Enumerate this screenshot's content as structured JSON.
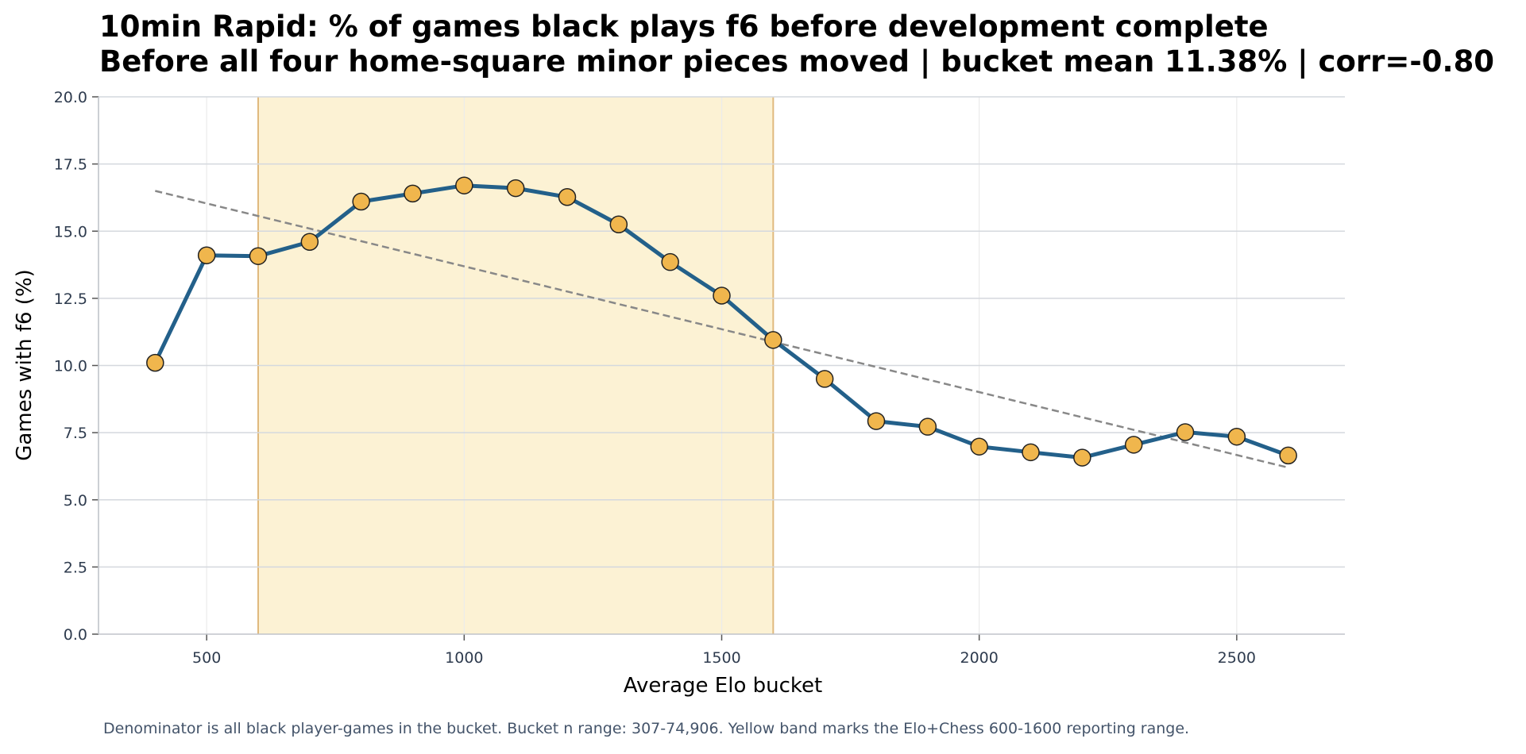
{
  "chart_data": {
    "type": "line",
    "title_lines": [
      "10min Rapid: % of games black plays f6 before development complete",
      "Before all four home-square minor pieces moved | bucket mean 11.38% | corr=-0.80"
    ],
    "xlabel": "Average Elo bucket",
    "ylabel": "Games with f6 (%)",
    "footnote": "Denominator is all black player-games in the bucket. Bucket n range: 307-74,906. Yellow band marks the Elo+Chess 600-1600 reporting range.",
    "xlim": [
      290,
      2710
    ],
    "ylim": [
      0,
      20
    ],
    "xticks": [
      500,
      1000,
      1500,
      2000,
      2500
    ],
    "yticks": [
      0.0,
      2.5,
      5.0,
      7.5,
      10.0,
      12.5,
      15.0,
      17.5,
      20.0
    ],
    "x": [
      400,
      500,
      600,
      700,
      800,
      900,
      1000,
      1100,
      1200,
      1300,
      1400,
      1500,
      1600,
      1700,
      1800,
      1900,
      2000,
      2100,
      2200,
      2300,
      2400,
      2500,
      2600
    ],
    "series": [
      {
        "values": [
          10.1,
          14.1,
          14.07,
          14.6,
          16.1,
          16.4,
          16.7,
          16.6,
          16.27,
          15.25,
          13.85,
          12.6,
          10.95,
          9.5,
          7.93,
          7.72,
          6.98,
          6.77,
          6.57,
          7.05,
          7.52,
          7.35,
          6.65
        ],
        "color": "#23608a",
        "marker_color": "#f0b64d"
      }
    ],
    "trendline": {
      "x": [
        400,
        2600
      ],
      "y": [
        16.5,
        6.2
      ],
      "color": "#888888"
    },
    "band": {
      "x": [
        600,
        1600
      ],
      "color": "#fcf2d4",
      "edge_color": "#e0b97e"
    },
    "grid": true
  }
}
